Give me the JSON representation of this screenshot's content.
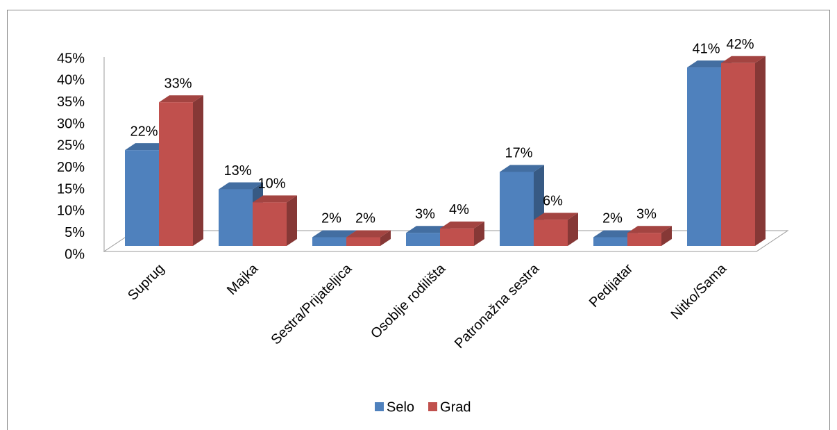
{
  "chart_data": {
    "type": "bar3d",
    "categories": [
      "Suprug",
      "Majka",
      "Sestra/Prijateljica",
      "Osoblje rodilišta",
      "Patronažna sestra",
      "Pedijatar",
      "Nitko/Sama"
    ],
    "series": [
      {
        "name": "Selo",
        "color": "#4f81bd",
        "values": [
          22,
          13,
          2,
          3,
          17,
          2,
          41
        ],
        "value_labels": [
          "22%",
          "13%",
          "2%",
          "3%",
          "17%",
          "2%",
          "41%"
        ]
      },
      {
        "name": "Grad",
        "color": "#c0504d",
        "values": [
          33,
          10,
          2,
          4,
          6,
          3,
          42
        ],
        "value_labels": [
          "33%",
          "10%",
          "2%",
          "4%",
          "6%",
          "3%",
          "42%"
        ]
      }
    ],
    "ylim": [
      0,
      45
    ],
    "yticks": [
      {
        "value": 0,
        "label": "0%"
      },
      {
        "value": 5,
        "label": "5%"
      },
      {
        "value": 10,
        "label": "10%"
      },
      {
        "value": 15,
        "label": "15%"
      },
      {
        "value": 20,
        "label": "20%"
      },
      {
        "value": 25,
        "label": "25%"
      },
      {
        "value": 30,
        "label": "30%"
      },
      {
        "value": 35,
        "label": "35%"
      },
      {
        "value": 40,
        "label": "40%"
      },
      {
        "value": 45,
        "label": "45%"
      }
    ],
    "legend": "bottom"
  }
}
